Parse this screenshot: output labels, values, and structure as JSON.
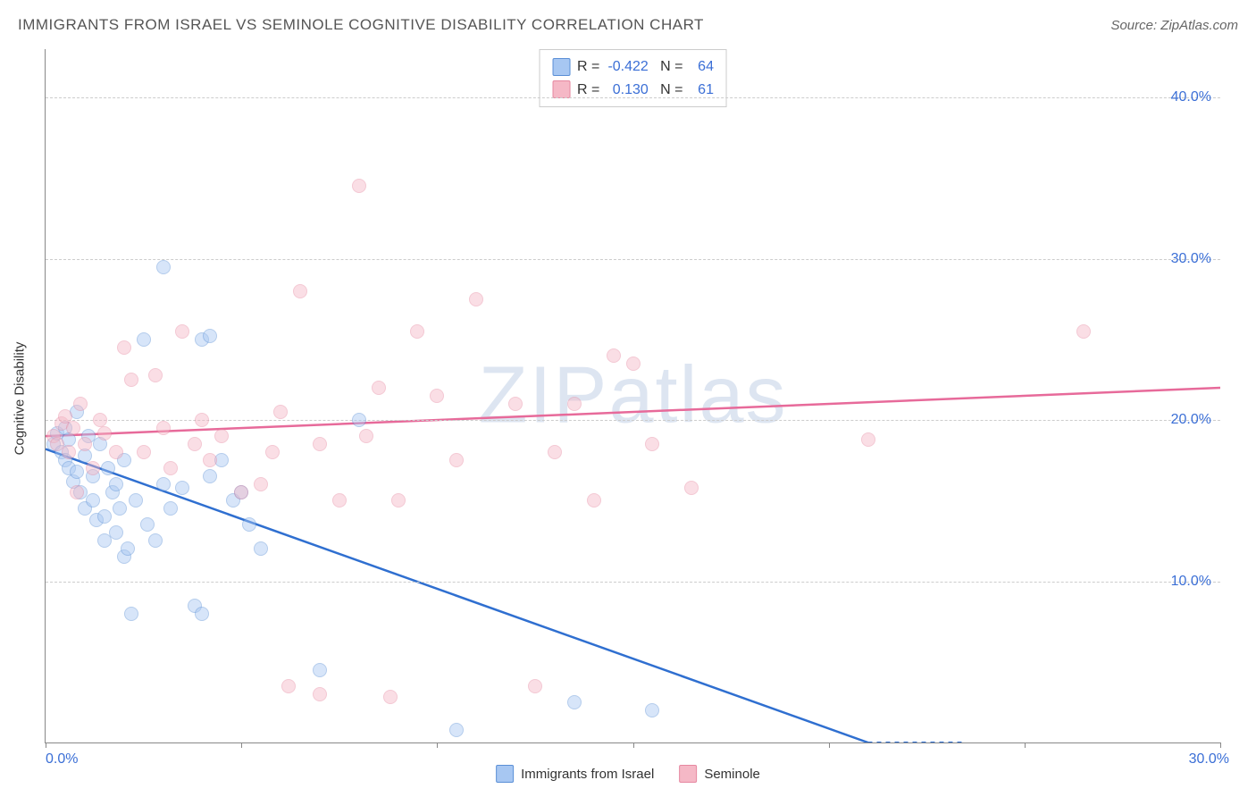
{
  "title": "IMMIGRANTS FROM ISRAEL VS SEMINOLE COGNITIVE DISABILITY CORRELATION CHART",
  "source_label": "Source: ZipAtlas.com",
  "y_axis_label": "Cognitive Disability",
  "watermark_a": "ZIP",
  "watermark_b": "atlas",
  "chart": {
    "type": "scatter",
    "background_color": "#ffffff",
    "grid_color": "#cccccc",
    "axis_color": "#888888",
    "label_color": "#3b6fd6",
    "xlim": [
      0,
      30
    ],
    "ylim": [
      0,
      43
    ],
    "x_ticks": [
      0,
      5,
      10,
      15,
      20,
      25,
      30
    ],
    "x_tick_labels": [
      "0.0%",
      "",
      "",
      "",
      "",
      "",
      "30.0%"
    ],
    "y_ticks": [
      10,
      20,
      30,
      40
    ],
    "y_tick_labels": [
      "10.0%",
      "20.0%",
      "30.0%",
      "40.0%"
    ],
    "point_radius": 8,
    "point_opacity": 0.45,
    "series": [
      {
        "name": "Immigrants from Israel",
        "fill_color": "#a7c7f2",
        "stroke_color": "#5a8fd6",
        "line_color": "#2f6fd0",
        "r_label": "R =",
        "r_value": "-0.422",
        "n_label": "N =",
        "n_value": "64",
        "trend": {
          "x1": 0,
          "y1": 18.2,
          "x2": 21,
          "y2": 0
        },
        "trend_dash_extra": {
          "x1": 21,
          "y1": 0,
          "x2": 23.5,
          "y2": -2
        },
        "points": [
          [
            0.2,
            18.5
          ],
          [
            0.3,
            19.2
          ],
          [
            0.4,
            18.0
          ],
          [
            0.5,
            17.5
          ],
          [
            0.5,
            19.5
          ],
          [
            0.6,
            18.8
          ],
          [
            0.6,
            17.0
          ],
          [
            0.7,
            16.2
          ],
          [
            0.8,
            16.8
          ],
          [
            0.8,
            20.5
          ],
          [
            0.9,
            15.5
          ],
          [
            1.0,
            17.8
          ],
          [
            1.0,
            14.5
          ],
          [
            1.1,
            19.0
          ],
          [
            1.2,
            15.0
          ],
          [
            1.2,
            16.5
          ],
          [
            1.3,
            13.8
          ],
          [
            1.4,
            18.5
          ],
          [
            1.5,
            14.0
          ],
          [
            1.5,
            12.5
          ],
          [
            1.6,
            17.0
          ],
          [
            1.7,
            15.5
          ],
          [
            1.8,
            16.0
          ],
          [
            1.8,
            13.0
          ],
          [
            1.9,
            14.5
          ],
          [
            2.0,
            17.5
          ],
          [
            2.0,
            11.5
          ],
          [
            2.1,
            12.0
          ],
          [
            2.2,
            8.0
          ],
          [
            2.3,
            15.0
          ],
          [
            2.5,
            25.0
          ],
          [
            2.6,
            13.5
          ],
          [
            2.8,
            12.5
          ],
          [
            3.0,
            29.5
          ],
          [
            3.0,
            16.0
          ],
          [
            3.2,
            14.5
          ],
          [
            3.5,
            15.8
          ],
          [
            3.8,
            8.5
          ],
          [
            4.0,
            8.0
          ],
          [
            4.0,
            25.0
          ],
          [
            4.2,
            16.5
          ],
          [
            4.2,
            25.2
          ],
          [
            4.5,
            17.5
          ],
          [
            4.8,
            15.0
          ],
          [
            5.0,
            15.5
          ],
          [
            5.2,
            13.5
          ],
          [
            5.5,
            12.0
          ],
          [
            7.0,
            4.5
          ],
          [
            8.0,
            20.0
          ],
          [
            10.5,
            0.8
          ],
          [
            13.5,
            2.5
          ],
          [
            15.5,
            2.0
          ]
        ]
      },
      {
        "name": "Seminole",
        "fill_color": "#f5b8c6",
        "stroke_color": "#e687a0",
        "line_color": "#e76a9a",
        "r_label": "R =",
        "r_value": "0.130",
        "n_label": "N =",
        "n_value": "61",
        "trend": {
          "x1": 0,
          "y1": 19.0,
          "x2": 30,
          "y2": 22.0
        },
        "points": [
          [
            0.2,
            19.0
          ],
          [
            0.3,
            18.5
          ],
          [
            0.4,
            19.8
          ],
          [
            0.5,
            20.2
          ],
          [
            0.6,
            18.0
          ],
          [
            0.7,
            19.5
          ],
          [
            0.8,
            15.5
          ],
          [
            0.9,
            21.0
          ],
          [
            1.0,
            18.5
          ],
          [
            1.2,
            17.0
          ],
          [
            1.4,
            20.0
          ],
          [
            1.5,
            19.2
          ],
          [
            1.8,
            18.0
          ],
          [
            2.0,
            24.5
          ],
          [
            2.2,
            22.5
          ],
          [
            2.5,
            18.0
          ],
          [
            2.8,
            22.8
          ],
          [
            3.0,
            19.5
          ],
          [
            3.2,
            17.0
          ],
          [
            3.5,
            25.5
          ],
          [
            3.8,
            18.5
          ],
          [
            4.0,
            20.0
          ],
          [
            4.2,
            17.5
          ],
          [
            4.5,
            19.0
          ],
          [
            5.0,
            15.5
          ],
          [
            5.5,
            16.0
          ],
          [
            5.8,
            18.0
          ],
          [
            6.0,
            20.5
          ],
          [
            6.2,
            3.5
          ],
          [
            6.5,
            28.0
          ],
          [
            7.0,
            18.5
          ],
          [
            7.0,
            3.0
          ],
          [
            7.5,
            15.0
          ],
          [
            8.0,
            34.5
          ],
          [
            8.2,
            19.0
          ],
          [
            8.5,
            22.0
          ],
          [
            8.8,
            2.8
          ],
          [
            9.0,
            15.0
          ],
          [
            9.5,
            25.5
          ],
          [
            10.0,
            21.5
          ],
          [
            10.5,
            17.5
          ],
          [
            11.0,
            27.5
          ],
          [
            12.0,
            21.0
          ],
          [
            12.5,
            3.5
          ],
          [
            13.0,
            18.0
          ],
          [
            13.5,
            21.0
          ],
          [
            14.0,
            15.0
          ],
          [
            14.5,
            24.0
          ],
          [
            15.0,
            23.5
          ],
          [
            15.5,
            18.5
          ],
          [
            16.5,
            15.8
          ],
          [
            21.0,
            18.8
          ],
          [
            26.5,
            25.5
          ]
        ]
      }
    ]
  },
  "bottom_legend": [
    {
      "label": "Immigrants from Israel",
      "fill": "#a7c7f2",
      "stroke": "#5a8fd6"
    },
    {
      "label": "Seminole",
      "fill": "#f5b8c6",
      "stroke": "#e687a0"
    }
  ]
}
